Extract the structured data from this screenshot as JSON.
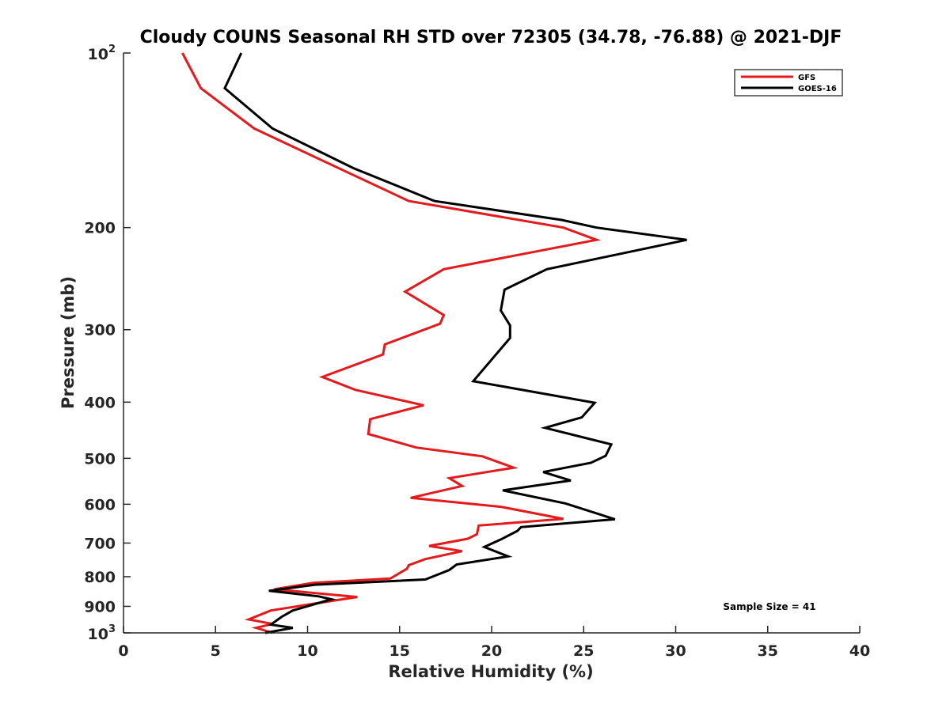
{
  "chart_data": {
    "type": "line",
    "title": "Cloudy COUNS Seasonal RH STD over 72305 (34.78, -76.88) @ 2021-DJF",
    "xlabel": "Relative Humidity (%)",
    "ylabel": "Pressure (mb)",
    "xlim": [
      0,
      40
    ],
    "ylim": [
      100,
      1000
    ],
    "y_scale": "log",
    "y_reversed": true,
    "x_ticks": [
      0,
      5,
      10,
      15,
      20,
      25,
      30,
      35,
      40
    ],
    "x_tick_labels": [
      "0",
      "5",
      "10",
      "15",
      "20",
      "25",
      "30",
      "35",
      "40"
    ],
    "y_ticks": [
      200,
      300,
      400,
      500,
      600,
      700,
      800,
      900
    ],
    "y_tick_labels": [
      "200",
      "300",
      "400",
      "500",
      "600",
      "700",
      "800",
      "900"
    ],
    "y_tick_top": {
      "base": "10",
      "exp": "2"
    },
    "y_tick_bottom": {
      "base": "10",
      "exp": "3"
    },
    "legend_position": "top-right",
    "series": [
      {
        "name": "GFS",
        "color": "#e41a1c",
        "points": [
          [
            3.2,
            100
          ],
          [
            4.2,
            115
          ],
          [
            7.1,
            135
          ],
          [
            15.5,
            180
          ],
          [
            23.9,
            200
          ],
          [
            25.7,
            210
          ],
          [
            17.4,
            236
          ],
          [
            15.3,
            258
          ],
          [
            17.4,
            283
          ],
          [
            17.2,
            293
          ],
          [
            14.2,
            318
          ],
          [
            14.1,
            331
          ],
          [
            10.8,
            362
          ],
          [
            12.6,
            381
          ],
          [
            16.3,
            405
          ],
          [
            13.4,
            428
          ],
          [
            13.3,
            454
          ],
          [
            15.9,
            479
          ],
          [
            19.5,
            496
          ],
          [
            21.2,
            519
          ],
          [
            17.7,
            541
          ],
          [
            18.4,
            558
          ],
          [
            15.6,
            585
          ],
          [
            20.5,
            606
          ],
          [
            23.9,
            636
          ],
          [
            19.3,
            653
          ],
          [
            19.2,
            676
          ],
          [
            18.7,
            688
          ],
          [
            16.6,
            708
          ],
          [
            18.4,
            723
          ],
          [
            16.4,
            746
          ],
          [
            15.5,
            764
          ],
          [
            15.4,
            775
          ],
          [
            14.5,
            806
          ],
          [
            10.3,
            820
          ],
          [
            8.2,
            841
          ],
          [
            12.7,
            867
          ],
          [
            10.4,
            890
          ],
          [
            8.0,
            915
          ],
          [
            6.8,
            948
          ],
          [
            8.1,
            965
          ],
          [
            7.2,
            980
          ],
          [
            8.1,
            1000
          ]
        ]
      },
      {
        "name": "GOES-16",
        "color": "#000000",
        "points": [
          [
            6.4,
            100
          ],
          [
            5.5,
            115
          ],
          [
            8.1,
            135
          ],
          [
            12.5,
            158
          ],
          [
            16.9,
            180
          ],
          [
            23.8,
            194
          ],
          [
            25.7,
            200
          ],
          [
            30.6,
            210
          ],
          [
            23.0,
            236
          ],
          [
            20.7,
            256
          ],
          [
            20.5,
            278
          ],
          [
            21.0,
            295
          ],
          [
            21.0,
            310
          ],
          [
            19.0,
            368
          ],
          [
            25.6,
            401
          ],
          [
            24.9,
            425
          ],
          [
            22.9,
            443
          ],
          [
            26.5,
            473
          ],
          [
            26.2,
            495
          ],
          [
            25.4,
            509
          ],
          [
            22.8,
            528
          ],
          [
            24.3,
            546
          ],
          [
            20.6,
            568
          ],
          [
            24.0,
            598
          ],
          [
            26.7,
            637
          ],
          [
            21.6,
            657
          ],
          [
            21.4,
            667
          ],
          [
            20.5,
            690
          ],
          [
            19.6,
            711
          ],
          [
            20.9,
            738
          ],
          [
            18.1,
            762
          ],
          [
            17.7,
            779
          ],
          [
            16.4,
            809
          ],
          [
            10.4,
            826
          ],
          [
            7.9,
            846
          ],
          [
            10.6,
            865
          ],
          [
            11.3,
            875
          ],
          [
            9.2,
            915
          ],
          [
            8.6,
            938
          ],
          [
            8.0,
            968
          ],
          [
            9.2,
            980
          ],
          [
            7.7,
            1000
          ]
        ]
      }
    ],
    "annotation": "Sample Size = 41"
  }
}
